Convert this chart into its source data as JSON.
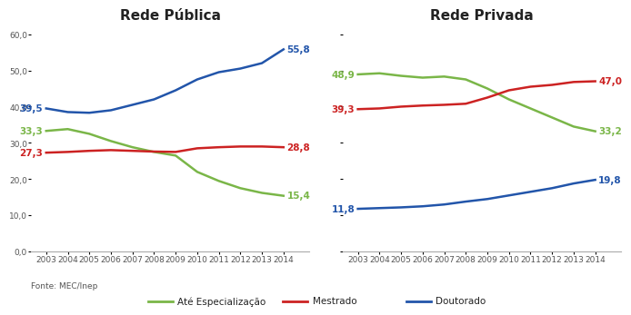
{
  "years": [
    2003,
    2004,
    2005,
    2006,
    2007,
    2008,
    2009,
    2010,
    2011,
    2012,
    2013,
    2014
  ],
  "publica": {
    "especializacao": [
      33.3,
      33.8,
      32.5,
      30.5,
      28.8,
      27.5,
      26.5,
      22.0,
      19.5,
      17.5,
      16.2,
      15.4
    ],
    "mestrado": [
      27.3,
      27.5,
      27.8,
      28.0,
      27.8,
      27.6,
      27.5,
      28.5,
      28.8,
      29.0,
      29.0,
      28.8
    ],
    "doutorado": [
      39.5,
      38.5,
      38.3,
      39.0,
      40.5,
      42.0,
      44.5,
      47.5,
      49.5,
      50.5,
      52.0,
      55.8
    ]
  },
  "privada": {
    "especializacao": [
      48.9,
      49.2,
      48.5,
      48.0,
      48.3,
      47.5,
      45.0,
      42.0,
      39.5,
      37.0,
      34.5,
      33.2
    ],
    "mestrado": [
      39.3,
      39.5,
      40.0,
      40.3,
      40.5,
      40.8,
      42.5,
      44.5,
      45.5,
      46.0,
      46.8,
      47.0
    ],
    "doutorado": [
      11.8,
      12.0,
      12.2,
      12.5,
      13.0,
      13.8,
      14.5,
      15.5,
      16.5,
      17.5,
      18.8,
      19.8
    ]
  },
  "colors": {
    "especializacao": "#7ab648",
    "mestrado": "#cc2222",
    "doutorado": "#2255aa"
  },
  "title_publica": "Rede Pública",
  "title_privada": "Rede Privada",
  "source": "Fonte: MEC/Inep",
  "legend_labels": [
    "Até Especialização",
    "Mestrado",
    "Doutorado"
  ],
  "end_labels_publica": {
    "especializacao": "15,4",
    "mestrado": "28,8",
    "doutorado": "55,8"
  },
  "start_labels_publica": {
    "especializacao": "33,3",
    "mestrado": "27,3",
    "doutorado": "39,5"
  },
  "end_labels_privada": {
    "especializacao": "33,2",
    "mestrado": "47,0",
    "doutorado": "19,8"
  },
  "start_labels_privada": {
    "especializacao": "48,9",
    "mestrado": "39,3",
    "doutorado": "11,8"
  },
  "ylim": [
    0,
    62
  ],
  "yticks": [
    0,
    10,
    20,
    30,
    40,
    50,
    60
  ],
  "background_color": "#ffffff",
  "line_width": 1.8,
  "tick_fontsize": 6.5,
  "label_fontsize": 7.5,
  "title_fontsize": 11
}
